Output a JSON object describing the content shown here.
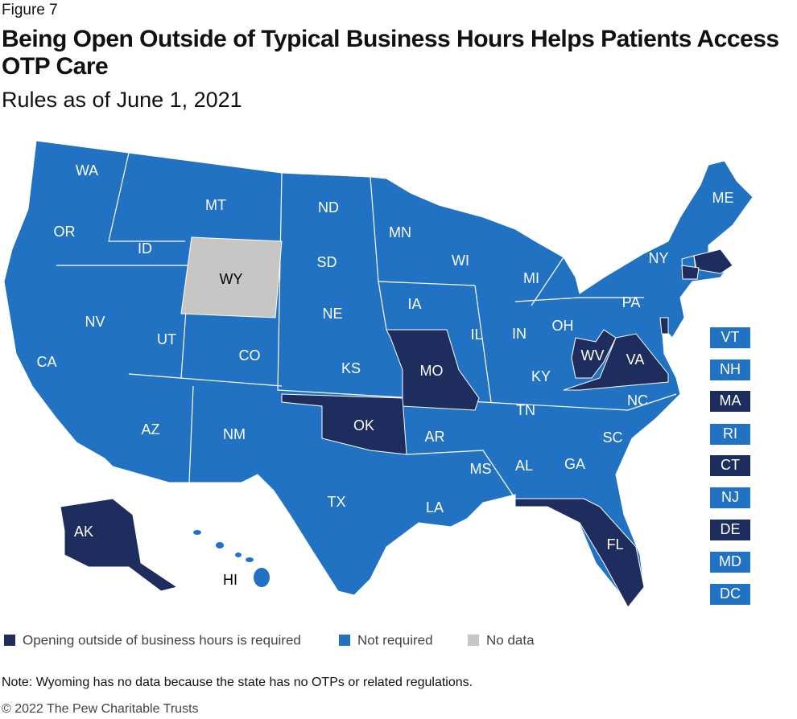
{
  "figure_label": "Figure 7",
  "title_lines": [
    "Being Open Outside of Typical Business Hours Helps Patients Access",
    "OTP Care"
  ],
  "subtitle": "Rules as of June 1, 2021",
  "legend": [
    {
      "label": "Opening outside of business hours is required",
      "color": "#1e2d5e"
    },
    {
      "label": "Not required",
      "color": "#2272c3"
    },
    {
      "label": "No data",
      "color": "#c8c6c4"
    }
  ],
  "states": [
    {
      "label": "WA",
      "status": 1
    },
    {
      "label": "MT",
      "status": 1
    },
    {
      "label": "ND",
      "status": 1
    },
    {
      "label": "MN",
      "status": 1
    },
    {
      "label": "WI",
      "status": 1
    },
    {
      "label": "MI",
      "status": 1
    },
    {
      "label": "ME",
      "status": 1
    },
    {
      "label": "OR",
      "status": 1
    },
    {
      "label": "ID",
      "status": 1
    },
    {
      "label": "WY",
      "status": 2
    },
    {
      "label": "SD",
      "status": 1
    },
    {
      "label": "NY",
      "status": 1
    },
    {
      "label": "NE",
      "status": 1
    },
    {
      "label": "IA",
      "status": 1
    },
    {
      "label": "IL",
      "status": 1
    },
    {
      "label": "IN",
      "status": 1
    },
    {
      "label": "OH",
      "status": 1
    },
    {
      "label": "PA",
      "status": 1
    },
    {
      "label": "NV",
      "status": 1
    },
    {
      "label": "UT",
      "status": 1
    },
    {
      "label": "CO",
      "status": 1
    },
    {
      "label": "KS",
      "status": 1
    },
    {
      "label": "MO",
      "status": 0
    },
    {
      "label": "KY",
      "status": 1
    },
    {
      "label": "WV",
      "status": 0
    },
    {
      "label": "VA",
      "status": 0
    },
    {
      "label": "CA",
      "status": 1
    },
    {
      "label": "AZ",
      "status": 1
    },
    {
      "label": "NM",
      "status": 1
    },
    {
      "label": "OK",
      "status": 0
    },
    {
      "label": "AR",
      "status": 1
    },
    {
      "label": "TN",
      "status": 1
    },
    {
      "label": "NC",
      "status": 1
    },
    {
      "label": "SC",
      "status": 1
    },
    {
      "label": "MS",
      "status": 1
    },
    {
      "label": "AL",
      "status": 1
    },
    {
      "label": "GA",
      "status": 1
    },
    {
      "label": "TX",
      "status": 1
    },
    {
      "label": "LA",
      "status": 1
    },
    {
      "label": "FL",
      "status": 0
    },
    {
      "label": "AK",
      "status": 0
    },
    {
      "label": "HI",
      "status": 1
    },
    {
      "label": "VT",
      "status": 1
    },
    {
      "label": "NH",
      "status": 1
    },
    {
      "label": "MA",
      "status": 0
    },
    {
      "label": "RI",
      "status": 1
    },
    {
      "label": "CT",
      "status": 0
    },
    {
      "label": "NJ",
      "status": 1
    },
    {
      "label": "DE",
      "status": 0
    },
    {
      "label": "MD",
      "status": 1
    },
    {
      "label": "DC",
      "status": 1
    }
  ],
  "note": "Note: Wyoming has no data because the state has no OTPs or related regulations.",
  "copyright": "© 2022 The Pew Charitable Trusts"
}
